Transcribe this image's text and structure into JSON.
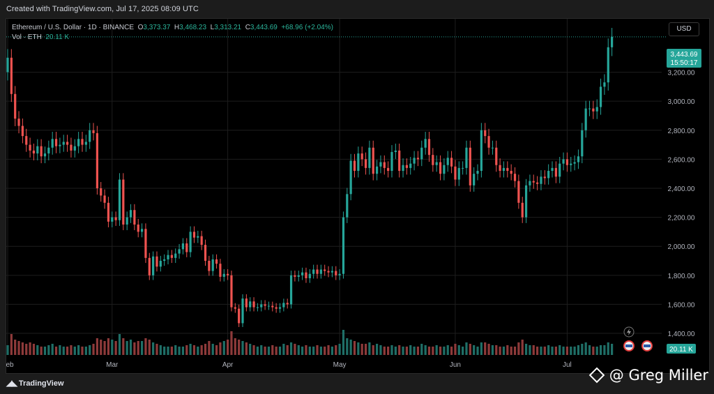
{
  "header": {
    "created_text": "Created with TradingView.com, Jul 17, 2025 08:09 UTC"
  },
  "legend": {
    "symbol": "Ethereum / U.S. Dollar · 1D · BINANCE",
    "o_label": "O",
    "o_value": "3,373.37",
    "h_label": "H",
    "h_value": "3,468.23",
    "l_label": "L",
    "l_value": "3,313.21",
    "c_label": "C",
    "c_value": "3,443.69",
    "change": "+68.96 (+2.04%)",
    "vol_label": "Vol · ETH",
    "vol_value": "20.11 K"
  },
  "currency_button": "USD",
  "price_tag": {
    "price": "3,443.69",
    "countdown": "15:50:17"
  },
  "volume_tag": "20.11 K",
  "footer": {
    "brand": "TradingView",
    "watermark": "@ Greg Miller"
  },
  "colors": {
    "up": "#26a69a",
    "down": "#ef5350",
    "up_vol": "#1f6f67",
    "down_vol": "#8e3a3a",
    "grid": "#1e1e1e"
  },
  "chart_data": {
    "type": "candlestick",
    "title": "Ethereum / U.S. Dollar · 1D · BINANCE",
    "y_ticks": [
      3200,
      3000,
      2800,
      2600,
      2400,
      2200,
      2000,
      1800,
      1600,
      1400
    ],
    "y_tick_labels": [
      "3,200.00",
      "3,000.00",
      "2,800.00",
      "2,600.00",
      "2,400.00",
      "2,200.00",
      "2,000.00",
      "1,800.00",
      "1,600.00",
      "1,400.00"
    ],
    "x_labels": [
      {
        "label": "Feb",
        "day": 0
      },
      {
        "label": "Mar",
        "day": 28
      },
      {
        "label": "Apr",
        "day": 59
      },
      {
        "label": "May",
        "day": 89
      },
      {
        "label": "Jun",
        "day": 120
      },
      {
        "label": "Jul",
        "day": 150
      }
    ],
    "ylim": [
      1280,
      3520
    ],
    "days": 167,
    "last_price": 3443.69,
    "closes": [
      3300,
      3050,
      2880,
      2830,
      2760,
      2700,
      2660,
      2640,
      2690,
      2620,
      2640,
      2680,
      2740,
      2690,
      2700,
      2720,
      2700,
      2660,
      2690,
      2740,
      2700,
      2720,
      2800,
      2780,
      2400,
      2350,
      2300,
      2170,
      2200,
      2180,
      2460,
      2150,
      2200,
      2250,
      2150,
      2100,
      2120,
      1920,
      1800,
      1930,
      1860,
      1900,
      1910,
      1940,
      1920,
      1950,
      1980,
      2020,
      1960,
      2100,
      2060,
      2070,
      2010,
      1900,
      1830,
      1910,
      1880,
      1790,
      1810,
      1800,
      1580,
      1570,
      1470,
      1640,
      1580,
      1620,
      1580,
      1580,
      1600,
      1590,
      1590,
      1580,
      1570,
      1580,
      1610,
      1600,
      1800,
      1790,
      1800,
      1820,
      1780,
      1810,
      1840,
      1810,
      1840,
      1830,
      1820,
      1830,
      1800,
      1810,
      2200,
      2360,
      2590,
      2520,
      2640,
      2600,
      2540,
      2680,
      2500,
      2550,
      2580,
      2540,
      2520,
      2650,
      2660,
      2520,
      2560,
      2540,
      2570,
      2610,
      2600,
      2680,
      2740,
      2630,
      2560,
      2580,
      2500,
      2560,
      2610,
      2550,
      2460,
      2540,
      2540,
      2680,
      2420,
      2500,
      2520,
      2800,
      2760,
      2680,
      2680,
      2560,
      2520,
      2540,
      2520,
      2500,
      2450,
      2300,
      2200,
      2420,
      2450,
      2440,
      2430,
      2480,
      2470,
      2520,
      2540,
      2480,
      2570,
      2600,
      2560,
      2570,
      2580,
      2620,
      2800,
      2950,
      2950,
      2930,
      2960,
      3100,
      3130,
      3372,
      3443.69
    ],
    "volume_levels": [
      0.35,
      0.75,
      0.55,
      0.5,
      0.45,
      0.4,
      0.45,
      0.4,
      0.35,
      0.3,
      0.3,
      0.35,
      0.4,
      0.3,
      0.35,
      0.3,
      0.3,
      0.35,
      0.3,
      0.35,
      0.3,
      0.3,
      0.35,
      0.4,
      0.6,
      0.55,
      0.5,
      0.6,
      0.55,
      0.5,
      0.75,
      0.6,
      0.5,
      0.55,
      0.45,
      0.5,
      0.5,
      0.6,
      0.55,
      0.45,
      0.4,
      0.35,
      0.3,
      0.3,
      0.3,
      0.35,
      0.3,
      0.3,
      0.35,
      0.4,
      0.35,
      0.3,
      0.35,
      0.4,
      0.5,
      0.4,
      0.35,
      0.45,
      0.5,
      0.55,
      0.85,
      0.6,
      0.55,
      0.5,
      0.45,
      0.4,
      0.35,
      0.3,
      0.35,
      0.3,
      0.3,
      0.35,
      0.3,
      0.3,
      0.4,
      0.35,
      0.45,
      0.4,
      0.35,
      0.3,
      0.35,
      0.3,
      0.3,
      0.35,
      0.3,
      0.3,
      0.35,
      0.3,
      0.35,
      0.4,
      0.9,
      0.6,
      0.55,
      0.5,
      0.45,
      0.4,
      0.4,
      0.45,
      0.35,
      0.4,
      0.35,
      0.3,
      0.3,
      0.35,
      0.3,
      0.35,
      0.3,
      0.3,
      0.35,
      0.3,
      0.3,
      0.4,
      0.35,
      0.3,
      0.3,
      0.35,
      0.3,
      0.3,
      0.35,
      0.3,
      0.4,
      0.35,
      0.3,
      0.45,
      0.4,
      0.35,
      0.3,
      0.45,
      0.45,
      0.4,
      0.35,
      0.35,
      0.3,
      0.3,
      0.35,
      0.3,
      0.3,
      0.45,
      0.55,
      0.4,
      0.35,
      0.35,
      0.3,
      0.3,
      0.3,
      0.35,
      0.3,
      0.3,
      0.35,
      0.3,
      0.3,
      0.3,
      0.3,
      0.35,
      0.4,
      0.45,
      0.35,
      0.3,
      0.3,
      0.35,
      0.35,
      0.45,
      0.4
    ]
  }
}
